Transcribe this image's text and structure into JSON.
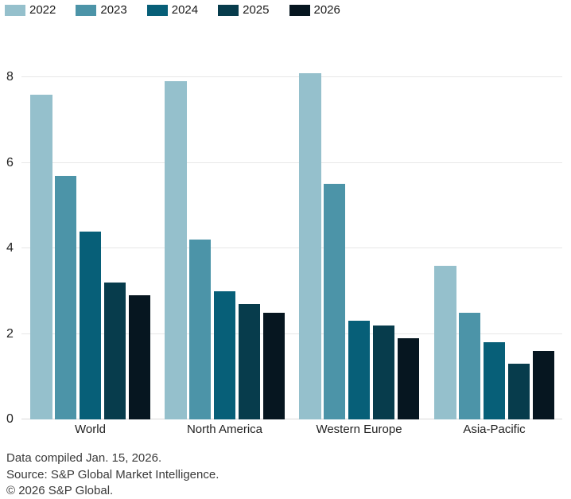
{
  "chart_data": {
    "type": "bar",
    "title": "",
    "xlabel": "",
    "ylabel": "",
    "categories": [
      "World",
      "North America",
      "Western Europe",
      "Asia-Pacific"
    ],
    "series": [
      {
        "name": "2022",
        "color": "#95c0cc",
        "values": [
          7.6,
          7.9,
          8.1,
          3.6
        ]
      },
      {
        "name": "2023",
        "color": "#4c94a8",
        "values": [
          5.7,
          4.2,
          5.5,
          2.5
        ]
      },
      {
        "name": "2024",
        "color": "#075f78",
        "values": [
          4.4,
          3.0,
          2.3,
          1.8
        ]
      },
      {
        "name": "2025",
        "color": "#073c4c",
        "values": [
          3.2,
          2.7,
          2.2,
          1.3
        ]
      },
      {
        "name": "2026",
        "color": "#061620",
        "values": [
          2.9,
          2.5,
          1.9,
          1.6
        ]
      }
    ],
    "yticks": [
      0,
      2,
      4,
      6,
      8
    ],
    "ylim": [
      0,
      8.3
    ],
    "grid": true,
    "legend_position": "top"
  },
  "footer": {
    "line1": "Data compiled Jan. 15, 2026.",
    "line2": "Source: S&P Global Market Intelligence.",
    "line3": "© 2026 S&P Global."
  }
}
